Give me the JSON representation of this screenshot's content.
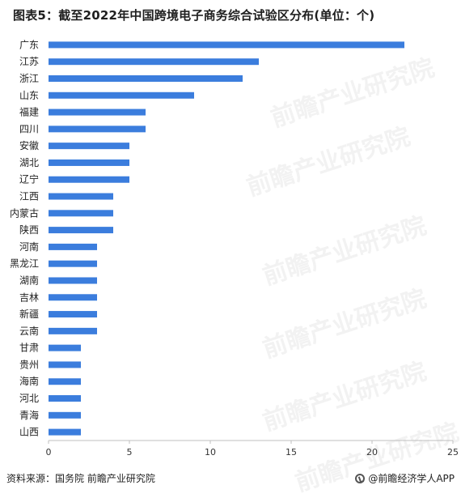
{
  "title": "图表5：截至2022年中国跨境电子商务综合试验区分布(单位：个)",
  "chart_data": {
    "type": "bar",
    "orientation": "horizontal",
    "categories": [
      "广东",
      "江苏",
      "浙江",
      "山东",
      "福建",
      "四川",
      "安徽",
      "湖北",
      "辽宁",
      "江西",
      "内蒙古",
      "陕西",
      "河南",
      "黑龙江",
      "湖南",
      "吉林",
      "新疆",
      "云南",
      "甘肃",
      "贵州",
      "海南",
      "河北",
      "青海",
      "山西"
    ],
    "values": [
      22,
      13,
      12,
      9,
      6,
      6,
      5,
      5,
      5,
      4,
      4,
      4,
      3,
      3,
      3,
      3,
      3,
      3,
      2,
      2,
      2,
      2,
      2,
      2
    ],
    "xlim": [
      0,
      25
    ],
    "xticks": [
      0,
      5,
      10,
      15,
      20,
      25
    ],
    "bar_color": "#3b7ddd",
    "grid": false
  },
  "watermark": "前瞻产业研究院",
  "footer": {
    "source": "资料来源：国务院 前瞻产业研究院",
    "brand": "@前瞻经济学人APP"
  }
}
